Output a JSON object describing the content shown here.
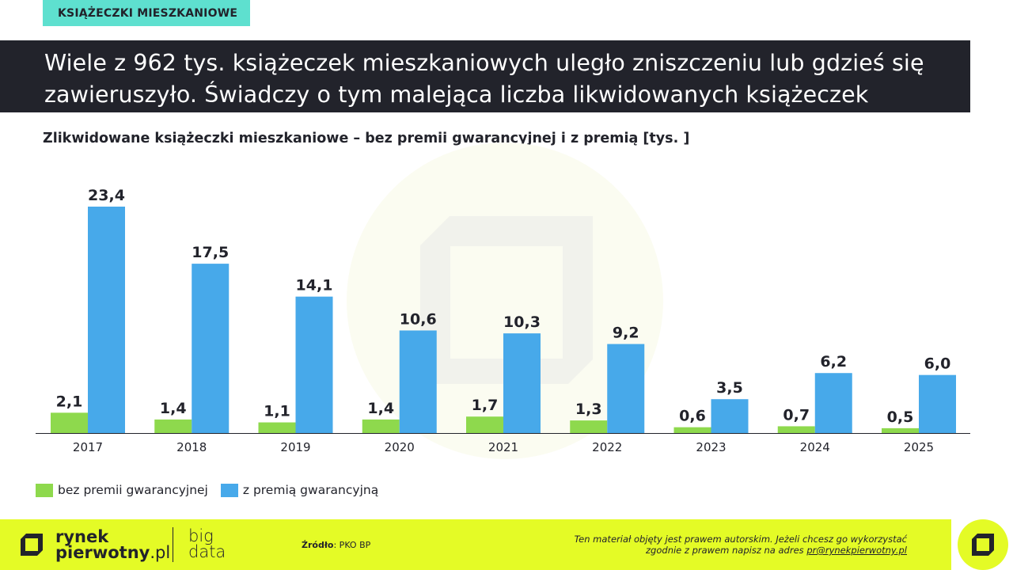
{
  "tag": "KSIĄŻECZKI MIESZKANIOWE",
  "headline": {
    "line1": "Wiele z 962 tys. książeczek mieszkaniowych uległo zniszczeniu lub gdzieś się",
    "line2": "zawieruszyło. Świadczy o tym malejąca liczba likwidowanych książeczek"
  },
  "colors": {
    "green": "#8ed94d",
    "blue": "#47a9ea",
    "dark": "#22232b",
    "accent": "#5ee0cf",
    "footer": "#e4fb26"
  },
  "chart_data": {
    "type": "bar",
    "title": "Zlikwidowane książeczki mieszkaniowe – bez premii gwarancyjnej i z premią [tys. ]",
    "categories": [
      "2017",
      "2018",
      "2019",
      "2020",
      "2021",
      "2022",
      "2023",
      "2024",
      "2025"
    ],
    "series": [
      {
        "name": "bez premii gwarancyjnej",
        "color": "#8ed94d",
        "values": [
          2.1,
          1.4,
          1.1,
          1.4,
          1.7,
          1.3,
          0.6,
          0.7,
          0.5
        ],
        "labels": [
          "2,1",
          "1,4",
          "1,1",
          "1,4",
          "1,7",
          "1,3",
          "0,6",
          "0,7",
          "0,5"
        ]
      },
      {
        "name": "z premią gwarancyjną",
        "color": "#47a9ea",
        "values": [
          23.4,
          17.5,
          14.1,
          10.6,
          10.3,
          9.2,
          3.5,
          6.2,
          6.0
        ],
        "labels": [
          "23,4",
          "17,5",
          "14,1",
          "10,6",
          "10,3",
          "9,2",
          "3,5",
          "6,2",
          "6,0"
        ]
      }
    ],
    "ylim": [
      0,
      23.4
    ],
    "grid": false,
    "legend_position": "bottom-left"
  },
  "footer": {
    "brand_line1": "rynek",
    "brand_line2": "pierwotny",
    "brand_suffix": ".pl",
    "big_line1": "big",
    "big_line2": "data",
    "source_label": "Źródło",
    "source_value": ": PKO BP",
    "copyright_line1": "Ten materiał objęty jest prawem autorskim. Jeżeli chcesz go wykorzystać",
    "copyright_line2_prefix": "zgodnie z prawem napisz na adres ",
    "copyright_email": "pr@rynekpierwotny.pl"
  }
}
